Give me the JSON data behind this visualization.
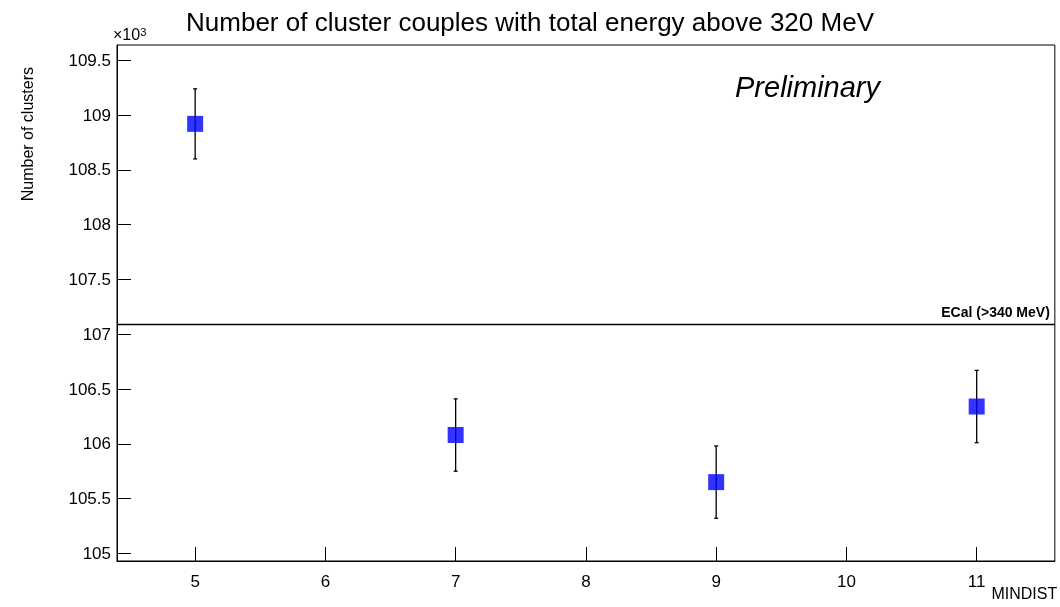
{
  "chart_data": {
    "type": "scatter",
    "title": "Number of cluster couples with total energy above 320 MeV",
    "xlabel": "MINDIST",
    "ylabel": "Number of clusters",
    "annotations": [
      "×10$^{3}$",
      "Preliminary"
    ],
    "x": [
      5,
      7,
      9,
      11
    ],
    "series": [
      {
        "color": "#0000ff",
        "values": [
          108.92,
          106.08,
          105.65,
          106.34
        ],
        "errors": [
          0.32,
          0.33,
          0.33,
          0.33
        ]
      }
    ],
    "marker": "square",
    "xlim": [
      4.4,
      11.6
    ],
    "xticks": [
      5,
      6,
      7,
      8,
      9,
      10,
      11
    ],
    "ylim": [
      104.93,
      109.64
    ],
    "yticks": [
      105,
      105.5,
      106,
      106.5,
      107,
      107.5,
      108,
      108.5,
      109,
      109.5
    ],
    "ref_lines": [
      {
        "axis": "y",
        "value": 107.09,
        "label": "ECal (>340 MeV)",
        "color": "#000000"
      }
    ],
    "grid": false
  }
}
